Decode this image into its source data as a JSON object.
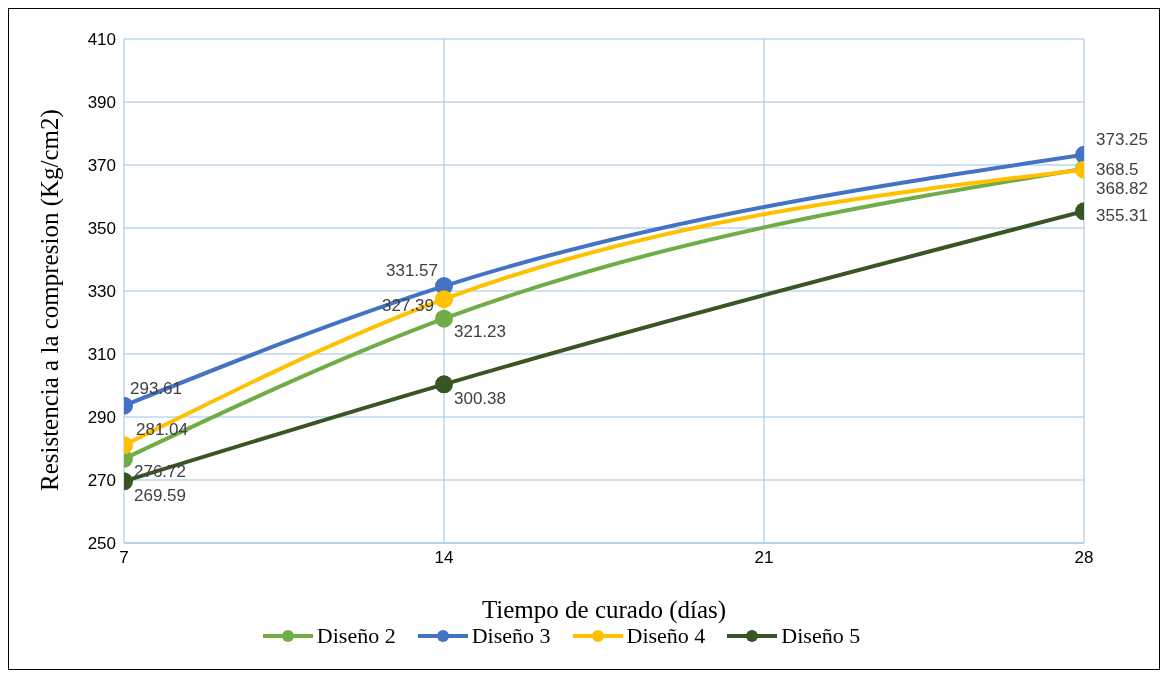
{
  "chart_data": {
    "type": "line",
    "xlabel": "Tiempo de curado (días)",
    "ylabel": "Resistencia  a la compresion (Kg/cm2)",
    "x": [
      7,
      14,
      28
    ],
    "series": [
      {
        "name": "Diseño 2",
        "color": "#70ad47",
        "values": [
          276.72,
          321.23,
          368.82
        ]
      },
      {
        "name": "Diseño 3",
        "color": "#4472c4",
        "values": [
          293.61,
          331.57,
          373.25
        ]
      },
      {
        "name": "Diseño 4",
        "color": "#ffc000",
        "values": [
          281.04,
          327.39,
          368.5
        ]
      },
      {
        "name": "Diseño 5",
        "color": "#375623",
        "values": [
          269.59,
          300.38,
          355.31
        ]
      }
    ],
    "xlim": [
      7,
      28
    ],
    "xticks": [
      7,
      14,
      21,
      28
    ],
    "ylim": [
      250,
      410
    ],
    "yticks": [
      250,
      270,
      290,
      310,
      330,
      350,
      370,
      390,
      410
    ],
    "grid": true,
    "legend": "bottom",
    "marker": "circle",
    "line_style": "solid",
    "data_labels": true
  }
}
